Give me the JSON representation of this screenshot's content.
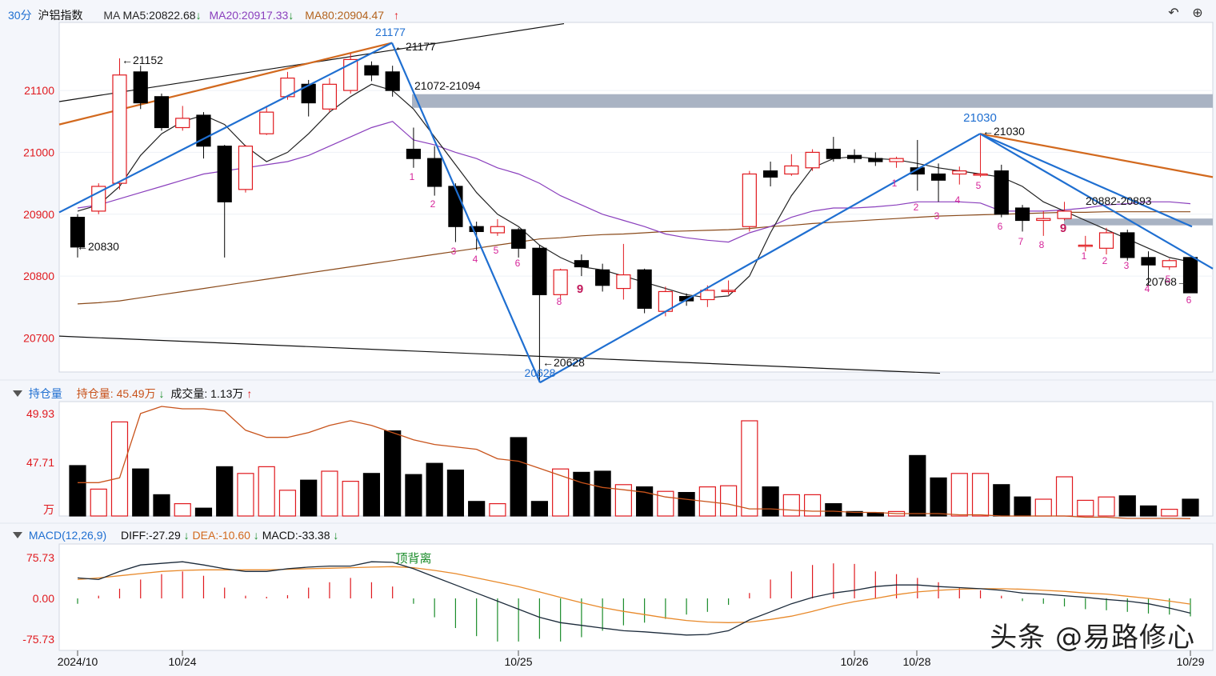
{
  "header": {
    "period": "30分",
    "symbol": "沪铝指数",
    "ma_label": "MA",
    "ma5": "MA5:20822.68",
    "ma20": "MA20:20917.33",
    "ma80": "MA80:20904.47",
    "ma5_dir": "↓",
    "ma20_dir": "↓",
    "ma80_dir": "↑"
  },
  "toolbar": {
    "undo_icon": "undo-icon",
    "zoom_icon": "zoom-in-icon"
  },
  "oi_header": {
    "title": "持仓量",
    "oi_label": "持仓量:",
    "oi_value": "45.49万",
    "oi_dir": "↓",
    "vol_label": "成交量:",
    "vol_value": "1.13万",
    "vol_dir": "↑"
  },
  "macd_header": {
    "title": "MACD(12,26,9)",
    "diff": "DIFF:-27.29",
    "diff_dir": "↓",
    "dea": "DEA:-10.60",
    "dea_dir": "↓",
    "macd": "MACD:-33.38",
    "macd_dir": "↓"
  },
  "colors": {
    "up": "#e0191e",
    "down": "#000000",
    "ma5": "#222222",
    "ma20": "#8a3fbd",
    "ma80": "#8a4a1a",
    "trend": "#1f6fd1",
    "orange_line": "#d2691e",
    "band": "#a9b3c3",
    "count": "#d6269a",
    "oi_line": "#c8531b",
    "macd_pos": "#e0191e",
    "macd_neg": "#1a8c2a"
  },
  "watermark": "头条 @易路修心",
  "chart_data": [
    {
      "type": "candlestick",
      "panel": "price",
      "ylim": [
        20645,
        21210
      ],
      "yticks": [
        "21100",
        "21000",
        "20900",
        "20800",
        "20700"
      ],
      "ytick_values": [
        21100,
        21000,
        20900,
        20800,
        20700
      ],
      "candles": [
        [
          20895,
          20847,
          20900,
          20830
        ],
        [
          20905,
          20945,
          20950,
          20900
        ],
        [
          20950,
          21125,
          21152,
          20940
        ],
        [
          21130,
          21080,
          21140,
          21070
        ],
        [
          21090,
          21040,
          21095,
          21035
        ],
        [
          21040,
          21055,
          21075,
          21035
        ],
        [
          21060,
          21010,
          21065,
          20990
        ],
        [
          21010,
          20920,
          21012,
          20830
        ],
        [
          20940,
          21010,
          21012,
          20935
        ],
        [
          21030,
          21065,
          21075,
          21028
        ],
        [
          21090,
          21120,
          21130,
          21085
        ],
        [
          21110,
          21080,
          21117,
          21058
        ],
        [
          21070,
          21110,
          21120,
          21065
        ],
        [
          21100,
          21150,
          21160,
          21095
        ],
        [
          21140,
          21125,
          21147,
          21115
        ],
        [
          21130,
          21100,
          21140,
          21090
        ],
        [
          21005,
          20990,
          21040,
          20975
        ],
        [
          20990,
          20945,
          21010,
          20930
        ],
        [
          20945,
          20880,
          20950,
          20855
        ],
        [
          20880,
          20872,
          20888,
          20842
        ],
        [
          20870,
          20880,
          20892,
          20865
        ],
        [
          20875,
          20845,
          20878,
          20830
        ],
        [
          20845,
          20770,
          20850,
          20628
        ],
        [
          20770,
          20810,
          20812,
          20762
        ],
        [
          20825,
          20815,
          20835,
          20800
        ],
        [
          20810,
          20785,
          20820,
          20775
        ],
        [
          20780,
          20802,
          20852,
          20762
        ],
        [
          20810,
          20748,
          20812,
          20740
        ],
        [
          20743,
          20775,
          20783,
          20735
        ],
        [
          20767,
          20760,
          20772,
          20752
        ],
        [
          20762,
          20777,
          20785,
          20750
        ],
        [
          20775,
          20777,
          20793,
          20770
        ],
        [
          20880,
          20965,
          20970,
          20872
        ],
        [
          20970,
          20960,
          20985,
          20945
        ],
        [
          20965,
          20978,
          20997,
          20962
        ],
        [
          20975,
          21000,
          21005,
          20970
        ],
        [
          21005,
          20990,
          21025,
          20985
        ],
        [
          20995,
          20990,
          21005,
          20983
        ],
        [
          20990,
          20985,
          21000,
          20978
        ],
        [
          20985,
          20990,
          20993,
          20975
        ],
        [
          20975,
          20965,
          21020,
          20938
        ],
        [
          20965,
          20955,
          20982,
          20920
        ],
        [
          20965,
          20970,
          20977,
          20948
        ],
        [
          20965,
          20965,
          21030,
          20960
        ],
        [
          20970,
          20900,
          20980,
          20895
        ],
        [
          20910,
          20890,
          20915,
          20872
        ],
        [
          20890,
          20893,
          20905,
          20865
        ],
        [
          20893,
          20905,
          20920,
          20890
        ],
        [
          20850,
          20850,
          20865,
          20840
        ],
        [
          20845,
          20870,
          20878,
          20835
        ],
        [
          20870,
          20830,
          20875,
          20825
        ],
        [
          20830,
          20818,
          20840,
          20785
        ],
        [
          20815,
          20825,
          20828,
          20810
        ],
        [
          20830,
          20773,
          20830,
          20773
        ]
      ],
      "ma5": [
        20905,
        20915,
        20945,
        20995,
        21030,
        21050,
        21060,
        21045,
        21010,
        20985,
        21000,
        21030,
        21065,
        21090,
        21110,
        21100,
        21070,
        21025,
        20980,
        20935,
        20900,
        20880,
        20850,
        20830,
        20815,
        20810,
        20800,
        20790,
        20780,
        20770,
        20765,
        20768,
        20800,
        20870,
        20930,
        20975,
        20990,
        20993,
        20990,
        20988,
        20982,
        20975,
        20970,
        20965,
        20960,
        20945,
        20920,
        20905,
        20890,
        20875,
        20860,
        20845,
        20830,
        20823
      ],
      "ma20": [
        20910,
        20915,
        20925,
        20935,
        20945,
        20955,
        20965,
        20970,
        20975,
        20980,
        20985,
        20995,
        21010,
        21025,
        21040,
        21050,
        21020,
        21012,
        21000,
        20990,
        20975,
        20965,
        20950,
        20930,
        20915,
        20900,
        20890,
        20880,
        20868,
        20862,
        20858,
        20855,
        20870,
        20880,
        20895,
        20905,
        20910,
        20910,
        20912,
        20915,
        20920,
        20920,
        20920,
        20918,
        20905,
        20905,
        20905,
        20907,
        20910,
        20915,
        20917,
        20920,
        20920,
        20917
      ],
      "ma80": [
        20755,
        20757,
        20760,
        20765,
        20770,
        20775,
        20780,
        20785,
        20790,
        20795,
        20800,
        20805,
        20810,
        20815,
        20820,
        20825,
        20830,
        20835,
        20840,
        20845,
        20850,
        20855,
        20860,
        20862,
        20865,
        20867,
        20868,
        20870,
        20872,
        20873,
        20874,
        20875,
        20877,
        20880,
        20882,
        20885,
        20887,
        20889,
        20891,
        20893,
        20895,
        20897,
        20898,
        20899,
        20900,
        20901,
        20902,
        20903,
        20903,
        20904,
        20904,
        20904,
        20904,
        20904
      ],
      "annotations": [
        "←21152",
        "←21177",
        "21177",
        "21072-21094",
        "←20830",
        "←20628",
        "20628",
        "21030",
        "←21030",
        "20882-20893",
        "20768→"
      ],
      "td_counts": [
        "1",
        "2",
        "3",
        "4",
        "5",
        "6",
        "8",
        "9",
        "1",
        "2",
        "3",
        "4",
        "5",
        "6",
        "7",
        "8",
        "9",
        "1",
        "2",
        "3",
        "4",
        "5",
        "6"
      ]
    },
    {
      "type": "bar",
      "panel": "open_interest_volume",
      "yticks": [
        "49.93",
        "47.71",
        "万"
      ],
      "ylim": [
        45.6,
        50.3
      ],
      "volume_rel": [
        0.45,
        0.24,
        0.84,
        0.42,
        0.19,
        0.11,
        0.07,
        0.44,
        0.38,
        0.44,
        0.23,
        0.32,
        0.4,
        0.31,
        0.38,
        0.76,
        0.37,
        0.47,
        0.41,
        0.13,
        0.11,
        0.7,
        0.13,
        0.42,
        0.39,
        0.4,
        0.28,
        0.26,
        0.22,
        0.21,
        0.26,
        0.27,
        0.85,
        0.26,
        0.19,
        0.19,
        0.11,
        0.04,
        0.03,
        0.04,
        0.54,
        0.34,
        0.38,
        0.38,
        0.28,
        0.17,
        0.15,
        0.35,
        0.14,
        0.17,
        0.18,
        0.09,
        0.06,
        0.15
      ],
      "open_interest": [
        47.0,
        47.0,
        47.2,
        49.9,
        50.2,
        50.1,
        50.1,
        50.0,
        49.2,
        48.9,
        48.9,
        49.1,
        49.4,
        49.6,
        49.4,
        49.1,
        48.8,
        48.6,
        48.5,
        48.4,
        48.0,
        47.9,
        47.6,
        47.3,
        47.0,
        46.8,
        46.7,
        46.6,
        46.4,
        46.3,
        46.2,
        46.1,
        45.9,
        45.9,
        45.85,
        45.8,
        45.8,
        45.75,
        45.75,
        45.7,
        45.7,
        45.7,
        45.65,
        45.65,
        45.6,
        45.6,
        45.6,
        45.6,
        45.55,
        45.55,
        45.5,
        45.5,
        45.5,
        45.49
      ]
    },
    {
      "type": "bar",
      "panel": "macd",
      "ylim": [
        -95,
        95
      ],
      "yticks": [
        "75.73",
        "0.00",
        "-75.73"
      ],
      "ytick_values": [
        75.73,
        0,
        -75.73
      ],
      "annotation": "顶背离",
      "macd": [
        -10,
        5,
        18,
        35,
        45,
        50,
        42,
        20,
        5,
        3,
        6,
        20,
        30,
        38,
        30,
        22,
        -10,
        -35,
        -55,
        -70,
        -80,
        -80,
        -75,
        -80,
        -72,
        -60,
        -50,
        -45,
        -38,
        -30,
        -25,
        -12,
        10,
        35,
        50,
        62,
        65,
        64,
        50,
        45,
        38,
        30,
        20,
        15,
        5,
        -5,
        -10,
        -15,
        -20,
        -22,
        -25,
        -28,
        -30,
        -33.38
      ],
      "diff": [
        38,
        35,
        50,
        62,
        65,
        68,
        62,
        55,
        50,
        50,
        55,
        58,
        60,
        60,
        68,
        67,
        55,
        40,
        25,
        10,
        -5,
        -20,
        -35,
        -45,
        -50,
        -55,
        -60,
        -62,
        -65,
        -68,
        -67,
        -60,
        -40,
        -25,
        -10,
        2,
        10,
        15,
        22,
        25,
        25,
        22,
        20,
        18,
        15,
        10,
        8,
        5,
        2,
        -2,
        -5,
        -10,
        -18,
        -27.29
      ],
      "dea": [
        35,
        38,
        42,
        46,
        50,
        52,
        53,
        53,
        53,
        53,
        54,
        55,
        56,
        57,
        58,
        59,
        57,
        52,
        46,
        38,
        30,
        22,
        12,
        2,
        -8,
        -17,
        -24,
        -30,
        -36,
        -41,
        -44,
        -45,
        -44,
        -39,
        -33,
        -24,
        -14,
        -6,
        0,
        7,
        12,
        15,
        17,
        18,
        18,
        17,
        15,
        13,
        10,
        8,
        4,
        0,
        -5,
        -10.6
      ]
    },
    {
      "type": "axis",
      "panel": "time",
      "x_labels": [
        "2024/10",
        "10/24",
        "10/25",
        "10/26",
        "10/28",
        "10/29"
      ]
    }
  ]
}
